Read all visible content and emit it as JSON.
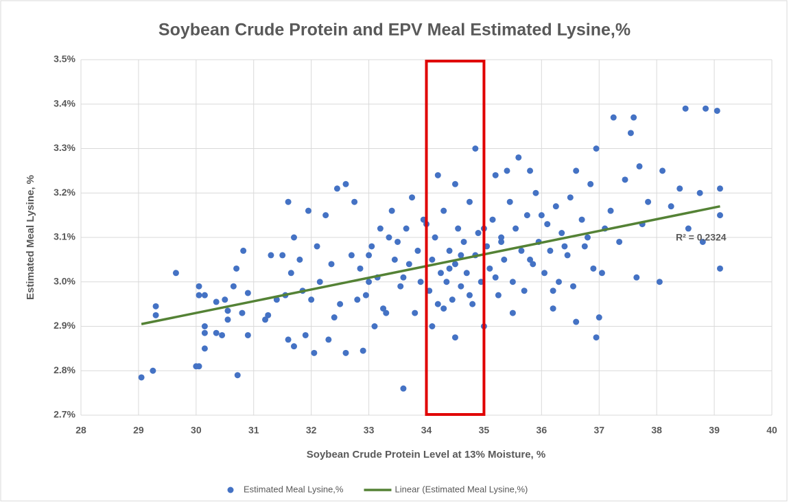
{
  "chart_data": {
    "type": "scatter",
    "title": "Soybean Crude Protein and EPV Meal Estimated Lysine,%",
    "xlabel": "Soybean Crude Protein Level at 13% Moisture, %",
    "ylabel": "Estimated Meal Lysine, %",
    "xlim": [
      28,
      40
    ],
    "xticks": [
      28,
      29,
      30,
      31,
      32,
      33,
      34,
      35,
      36,
      37,
      38,
      39,
      40
    ],
    "ylim": [
      2.7,
      3.5
    ],
    "yticks": [
      {
        "value": 2.7,
        "label": "2.7%"
      },
      {
        "value": 2.8,
        "label": "2.8%"
      },
      {
        "value": 2.9,
        "label": "2.9%"
      },
      {
        "value": 3.0,
        "label": "3.0%"
      },
      {
        "value": 3.1,
        "label": "3.1%"
      },
      {
        "value": 3.2,
        "label": "3.2%"
      },
      {
        "value": 3.3,
        "label": "3.3%"
      },
      {
        "value": 3.4,
        "label": "3.4%"
      },
      {
        "value": 3.5,
        "label": "3.5%"
      }
    ],
    "grid": true,
    "legend": "bottom",
    "highlight_x": [
      34,
      35
    ],
    "highlight_color": "#e00000",
    "annotations": [
      "R² = 0.2324"
    ],
    "series": [
      {
        "name": "Estimated Meal Lysine,%",
        "color": "#4472c4",
        "x": [
          29.05,
          29.25,
          29.3,
          29.3,
          29.65,
          30.0,
          30.05,
          30.05,
          30.05,
          30.15,
          30.15,
          30.15,
          30.15,
          30.35,
          30.35,
          30.45,
          30.5,
          30.55,
          30.55,
          30.65,
          30.7,
          30.72,
          30.8,
          30.82,
          30.9,
          30.9,
          31.2,
          31.25,
          31.3,
          31.5,
          31.55,
          31.6,
          31.6,
          31.7,
          31.7,
          31.8,
          31.9,
          31.95,
          32.0,
          32.05,
          32.1,
          32.25,
          32.3,
          32.45,
          32.6,
          32.6,
          32.75,
          32.9,
          33.0,
          33.1,
          33.2,
          33.4,
          33.6,
          33.75,
          34.1,
          34.2,
          34.5,
          34.5,
          34.85,
          35.0,
          35.2,
          35.4,
          35.6,
          35.8,
          36.2,
          36.6,
          36.6,
          36.95,
          36.95,
          37.0,
          37.05,
          37.25,
          37.55,
          37.6,
          37.7,
          37.65,
          38.05,
          38.1,
          38.25,
          38.4,
          38.5,
          38.55,
          38.75,
          38.8,
          38.85,
          39.05,
          39.1,
          39.1,
          39.1,
          31.4,
          31.65,
          31.85,
          32.15,
          32.35,
          32.5,
          32.7,
          32.85,
          32.95,
          33.05,
          33.15,
          33.25,
          33.35,
          33.45,
          33.55,
          33.65,
          33.7,
          33.8,
          33.85,
          33.9,
          33.95,
          34.05,
          34.1,
          34.15,
          34.2,
          34.25,
          34.3,
          34.35,
          34.4,
          34.45,
          34.5,
          34.55,
          34.6,
          34.65,
          34.7,
          34.75,
          34.8,
          34.85,
          34.9,
          34.95,
          35.05,
          35.1,
          35.15,
          35.25,
          35.3,
          35.35,
          35.45,
          35.5,
          35.55,
          35.65,
          35.7,
          35.75,
          35.85,
          35.9,
          35.95,
          36.05,
          36.1,
          36.15,
          36.25,
          36.3,
          36.35,
          36.45,
          36.5,
          36.55,
          36.7,
          36.75,
          36.85,
          36.9,
          37.1,
          37.2,
          37.35,
          37.45,
          37.75,
          37.85,
          32.4,
          32.8,
          33.3,
          33.5,
          34.0,
          34.3,
          34.6,
          34.75,
          35.0,
          35.2,
          35.5,
          35.8,
          36.0,
          36.4,
          36.8,
          33.0,
          33.6,
          34.4,
          35.3,
          36.2
        ],
        "values": [
          2.785,
          2.8,
          2.945,
          2.925,
          3.02,
          2.81,
          2.81,
          2.99,
          2.97,
          2.97,
          2.85,
          2.9,
          2.885,
          2.955,
          2.885,
          2.88,
          2.96,
          2.935,
          2.915,
          2.99,
          3.03,
          2.79,
          2.93,
          3.07,
          2.975,
          2.88,
          2.915,
          2.925,
          3.06,
          3.06,
          2.97,
          2.87,
          3.18,
          2.855,
          3.1,
          3.05,
          2.88,
          3.16,
          2.96,
          2.84,
          3.08,
          3.15,
          2.87,
          3.21,
          3.22,
          2.84,
          3.18,
          2.845,
          3.0,
          2.9,
          3.12,
          3.16,
          2.76,
          3.19,
          2.9,
          3.24,
          3.22,
          2.875,
          3.3,
          2.9,
          3.24,
          3.25,
          3.28,
          3.25,
          2.94,
          3.25,
          2.91,
          2.875,
          3.3,
          2.92,
          3.02,
          3.37,
          3.335,
          3.37,
          3.26,
          3.01,
          3.0,
          3.25,
          3.17,
          3.21,
          3.39,
          3.12,
          3.2,
          3.09,
          3.39,
          3.385,
          3.21,
          3.15,
          3.03,
          2.96,
          3.02,
          2.98,
          3.0,
          3.04,
          2.95,
          3.06,
          3.03,
          2.97,
          3.08,
          3.01,
          2.94,
          3.1,
          3.05,
          2.99,
          3.12,
          3.04,
          2.93,
          3.07,
          3.0,
          3.14,
          2.98,
          3.05,
          3.1,
          2.95,
          3.02,
          3.16,
          3.0,
          3.07,
          2.96,
          3.04,
          3.12,
          2.99,
          3.09,
          3.02,
          3.18,
          2.95,
          3.06,
          3.11,
          3.0,
          3.08,
          3.03,
          3.14,
          2.97,
          3.1,
          3.05,
          3.18,
          3.0,
          3.12,
          3.07,
          2.98,
          3.15,
          3.04,
          3.2,
          3.09,
          3.02,
          3.13,
          3.07,
          3.17,
          3.0,
          3.11,
          3.06,
          3.19,
          2.99,
          3.14,
          3.08,
          3.22,
          3.03,
          3.12,
          3.16,
          3.09,
          3.23,
          3.13,
          3.18,
          2.92,
          2.96,
          2.93,
          3.09,
          3.13,
          2.94,
          3.06,
          2.97,
          3.12,
          3.01,
          2.93,
          3.05,
          3.15,
          3.08,
          3.1,
          3.06,
          3.01,
          3.03,
          3.09,
          2.98
        ]
      },
      {
        "name": "Linear (Estimated Meal Lysine,%)",
        "color": "#548235",
        "line": true,
        "x": [
          29.05,
          39.1
        ],
        "values": [
          2.905,
          3.17
        ]
      }
    ]
  }
}
